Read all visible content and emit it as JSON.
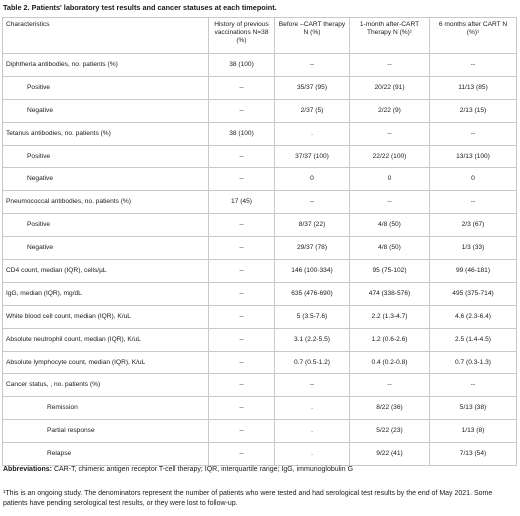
{
  "title": "Table 2. Patients' laboratory test results and cancer statuses at each timepoint.",
  "headers": [
    "Characteristics",
    "History of previous vaccinations N=38 (%)",
    "Before –CART therapy N (%)",
    "1-month after-CART Therapy N (%)¹",
    "6 months after CART N (%)¹"
  ],
  "rows": [
    {
      "label": "Diphtheria antibodies,  no. patients (%)",
      "indent": 0,
      "cells": [
        "38 (100)",
        "--",
        "--",
        "--"
      ]
    },
    {
      "label": "Positive",
      "indent": 1,
      "cells": [
        "--",
        "35/37 (95)",
        "20/22 (91)",
        "11/13 (85)"
      ]
    },
    {
      "label": "Negative",
      "indent": 1,
      "cells": [
        "--",
        "2/37 (5)",
        "2/22 (9)",
        "2/13 (15)"
      ]
    },
    {
      "label": "Tetanus antibodies, no. patients (%)",
      "indent": 0,
      "cells": [
        "38 (100)",
        ".",
        "--",
        "--"
      ]
    },
    {
      "label": "Positive",
      "indent": 1,
      "cells": [
        "--",
        "37/37 (100)",
        "22/22 (100)",
        "13/13 (100)"
      ]
    },
    {
      "label": "Negative",
      "indent": 1,
      "cells": [
        "--",
        "0",
        "0",
        "0"
      ]
    },
    {
      "label": "Pneumococcal antibodies, no. patients (%)",
      "indent": 0,
      "cells": [
        "17 (45)",
        "--",
        "--",
        "--"
      ]
    },
    {
      "label": "Positive",
      "indent": 1,
      "cells": [
        "--",
        "8/37 (22)",
        "4/8 (50)",
        "2/3 (67)"
      ]
    },
    {
      "label": "Negative",
      "indent": 1,
      "cells": [
        "--",
        "29/37 (78)",
        "4/8 (50)",
        "1/3 (33)"
      ]
    },
    {
      "label": "CD4 count, median (IQR), cells/µL",
      "indent": 0,
      "cells": [
        "--",
        "146 (100-334)",
        "95 (75-102)",
        "99 (46-181)"
      ]
    },
    {
      "label": "IgG, median (IQR), mg/dL",
      "indent": 0,
      "cells": [
        "--",
        "635 (476-690)",
        "474 (338-576)",
        "495 (375-714)"
      ]
    },
    {
      "label": "White blood cell count, median (IQR), K/uL",
      "indent": 0,
      "cells": [
        "--",
        "5 (3.5-7.6)",
        "2.2 (1.3-4.7)",
        "4.6 (2.3-6.4)"
      ]
    },
    {
      "label": "Absolute neutrophil count, median (IQR), K/uL",
      "indent": 0,
      "cells": [
        "--",
        "3.1 (2.2-5.5)",
        "1.2 (0.6-2.6)",
        "2.5 (1.4-4.5)"
      ]
    },
    {
      "label": "Absolute lymphocyte count, median (IQR), K/uL",
      "indent": 0,
      "cells": [
        "--",
        "0.7 (0.5-1.2)",
        "0.4 (0.2-0.8)",
        "0.7 (0.3-1.3)"
      ]
    },
    {
      "label": "Cancer status, , no. patients (%)",
      "indent": 0,
      "cells": [
        "--",
        "--",
        "--",
        "--"
      ]
    },
    {
      "label": "Remission",
      "indent": 2,
      "cells": [
        "--",
        ".",
        "8/22 (36)",
        "5/13 (38)"
      ]
    },
    {
      "label": "Partial response",
      "indent": 2,
      "cells": [
        "--",
        ".",
        "5/22 (23)",
        "1/13 (8)"
      ]
    },
    {
      "label": "Relapse",
      "indent": 2,
      "cells": [
        "--",
        ".",
        "9/22 (41)",
        "7/13 (54)"
      ]
    }
  ],
  "abbreviations": {
    "label": "Abbreviations:",
    "text": " CAR-T, chimeric antigen receptor T-cell therapy; IQR, interquartile range; IgG, immunoglobulin G"
  },
  "footnote": "¹This is an ongoing study. The denominators represent the number of patients who were tested and had serological test results by the end of May 2021. Some patients have pending serological test results, or they were lost to follow-up."
}
